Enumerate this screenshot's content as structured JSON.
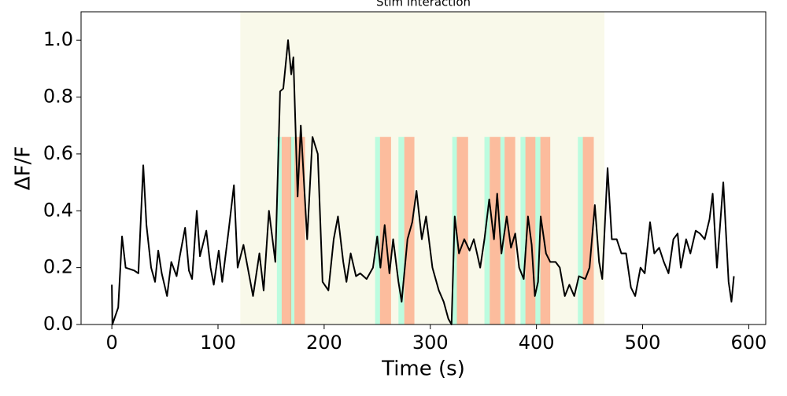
{
  "chart_data": {
    "type": "line",
    "title": "Stim interaction",
    "x_label": "Time (s)",
    "y_label": "ΔF/F",
    "xlim": [
      -29,
      616
    ],
    "ylim": [
      0,
      1.1
    ],
    "xticks": [
      0,
      100,
      200,
      300,
      400,
      500,
      600
    ],
    "yticks": [
      {
        "value": 0,
        "label": "0.0"
      },
      0.2,
      0.4,
      0.6,
      0.8,
      {
        "value": 1,
        "label": "1.0"
      }
    ],
    "color": "#000000",
    "x": [
      0,
      0.5,
      6,
      9.6,
      13,
      21,
      25,
      29.6,
      32.6,
      37,
      40.7,
      43.7,
      47,
      52,
      56,
      61,
      64,
      69,
      72.6,
      75.6,
      80,
      83,
      89,
      93,
      96,
      100.7,
      104,
      110,
      115,
      118.5,
      124,
      129,
      133,
      139,
      143,
      148,
      154,
      158.5,
      161.5,
      166,
      169,
      171,
      175,
      178,
      184,
      189,
      194,
      198.5,
      204,
      209,
      213,
      218,
      221,
      225,
      230,
      234,
      240,
      246,
      250,
      253,
      257,
      261.5,
      265,
      270,
      273,
      278.5,
      283,
      287,
      292,
      296,
      302,
      308,
      312.6,
      317,
      320,
      323,
      327,
      332,
      337,
      341,
      347,
      351,
      355.5,
      360,
      363,
      367,
      372,
      376,
      380,
      383.7,
      388,
      392,
      395.5,
      398.5,
      401.5,
      404,
      409,
      413,
      418,
      422,
      426.7,
      431,
      435.6,
      440,
      446,
      450,
      455,
      459,
      462,
      467,
      471,
      475.6,
      480,
      484.4,
      489,
      493,
      498,
      502,
      507,
      511,
      515.6,
      520,
      524.4,
      529,
      533,
      536,
      541,
      545,
      550,
      554,
      558.5,
      563,
      566,
      570,
      576,
      581,
      583.7,
      586
    ],
    "values": [
      0.14,
      0.0,
      0.06,
      0.31,
      0.2,
      0.19,
      0.18,
      0.56,
      0.35,
      0.2,
      0.15,
      0.26,
      0.18,
      0.1,
      0.22,
      0.17,
      0.24,
      0.34,
      0.19,
      0.16,
      0.4,
      0.24,
      0.33,
      0.2,
      0.14,
      0.26,
      0.15,
      0.33,
      0.49,
      0.2,
      0.28,
      0.18,
      0.1,
      0.25,
      0.12,
      0.4,
      0.22,
      0.82,
      0.83,
      1.0,
      0.88,
      0.94,
      0.45,
      0.7,
      0.3,
      0.66,
      0.6,
      0.15,
      0.12,
      0.3,
      0.38,
      0.22,
      0.15,
      0.25,
      0.17,
      0.18,
      0.16,
      0.2,
      0.31,
      0.2,
      0.35,
      0.18,
      0.3,
      0.15,
      0.08,
      0.3,
      0.36,
      0.47,
      0.3,
      0.38,
      0.2,
      0.12,
      0.08,
      0.02,
      0.0,
      0.38,
      0.25,
      0.3,
      0.26,
      0.3,
      0.2,
      0.3,
      0.44,
      0.3,
      0.46,
      0.25,
      0.38,
      0.27,
      0.32,
      0.2,
      0.16,
      0.38,
      0.28,
      0.1,
      0.15,
      0.38,
      0.25,
      0.22,
      0.22,
      0.2,
      0.1,
      0.14,
      0.1,
      0.17,
      0.16,
      0.2,
      0.42,
      0.22,
      0.16,
      0.55,
      0.3,
      0.3,
      0.25,
      0.25,
      0.13,
      0.1,
      0.2,
      0.18,
      0.36,
      0.25,
      0.27,
      0.22,
      0.18,
      0.3,
      0.32,
      0.2,
      0.3,
      0.25,
      0.33,
      0.32,
      0.3,
      0.37,
      0.46,
      0.2,
      0.5,
      0.15,
      0.08,
      0.17
    ],
    "shaded_region": {
      "range": [
        121,
        464
      ],
      "color": "#f5f5dc"
    },
    "spans": [
      {
        "color": "#7fffd4",
        "top": 0.66,
        "ranges": [
          [
            155.5,
            160
          ],
          [
            168,
            172
          ],
          [
            248,
            252.6
          ],
          [
            270,
            275.5
          ],
          [
            320.7,
            325
          ],
          [
            351,
            356
          ],
          [
            366,
            370
          ],
          [
            385,
            389.6
          ],
          [
            399,
            403.7
          ],
          [
            439,
            443.7
          ]
        ]
      },
      {
        "color": "#ff7f50",
        "top": 0.66,
        "ranges": [
          [
            160,
            169
          ],
          [
            172,
            182
          ],
          [
            252.6,
            263
          ],
          [
            275.5,
            285
          ],
          [
            325,
            335.6
          ],
          [
            356,
            366
          ],
          [
            370,
            380
          ],
          [
            389.6,
            399
          ],
          [
            403.7,
            413
          ],
          [
            443.7,
            454
          ]
        ]
      }
    ]
  }
}
